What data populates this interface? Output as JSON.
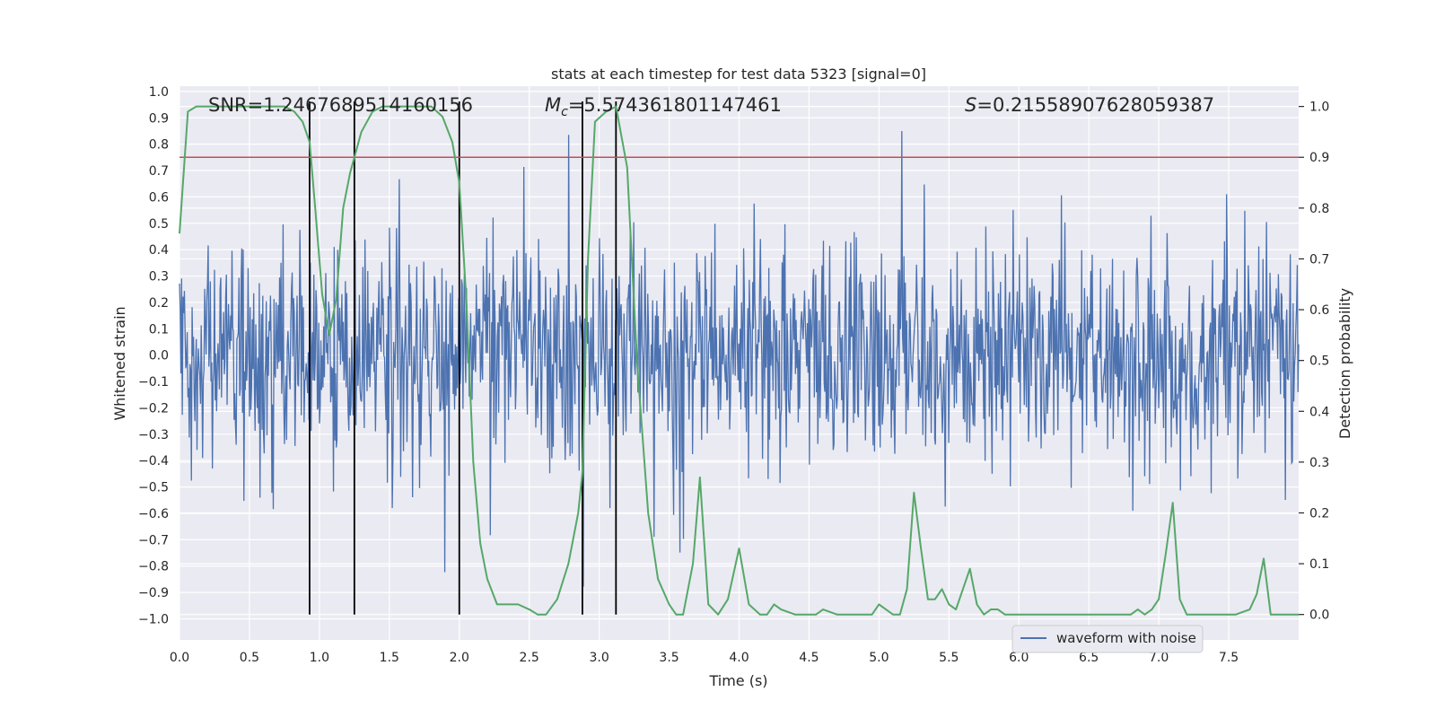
{
  "chart_data": {
    "type": "line",
    "title": "stats at each timestep for test data 5323 [signal=0]",
    "xlabel": "Time (s)",
    "ylabel_left": "Whitened strain",
    "ylabel_right": "Detection probability",
    "xlim": [
      0.0,
      8.0
    ],
    "ylim_left": [
      -1.08,
      1.02
    ],
    "ylim_right": [
      -0.05,
      1.04
    ],
    "grid": true,
    "x_ticks": [
      0.0,
      0.5,
      1.0,
      1.5,
      2.0,
      2.5,
      3.0,
      3.5,
      4.0,
      4.5,
      5.0,
      5.5,
      6.0,
      6.5,
      7.0,
      7.5
    ],
    "x_tick_labels": [
      "0.0",
      "0.5",
      "1.0",
      "1.5",
      "2.0",
      "2.5",
      "3.0",
      "3.5",
      "4.0",
      "4.5",
      "5.0",
      "5.5",
      "6.0",
      "6.5",
      "7.0",
      "7.5"
    ],
    "y_left_ticks": [
      1.0,
      0.9,
      0.8,
      0.7,
      0.6,
      0.5,
      0.4,
      0.3,
      0.2,
      0.1,
      0.0,
      -0.1,
      -0.2,
      -0.3,
      -0.4,
      -0.5,
      -0.6,
      -0.7,
      -0.8,
      -0.9,
      -1.0
    ],
    "y_left_tick_labels": [
      "1.0",
      "0.9",
      "0.8",
      "0.7",
      "0.6",
      "0.5",
      "0.4",
      "0.3",
      "0.2",
      "0.1",
      "0.0",
      "−0.1",
      "−0.2",
      "−0.3",
      "−0.4",
      "−0.5",
      "−0.6",
      "−0.7",
      "−0.8",
      "−0.9",
      "−1.0"
    ],
    "y_right_ticks": [
      1.0,
      0.9,
      0.8,
      0.7,
      0.6,
      0.5,
      0.4,
      0.3,
      0.2,
      0.1,
      0.0
    ],
    "y_right_tick_labels": [
      "1.0",
      "0.9",
      "0.8",
      "0.7",
      "0.6",
      "0.5",
      "0.4",
      "0.3",
      "0.2",
      "0.1",
      "0.0"
    ],
    "annotations": {
      "snr": "SNR=1.2467689514160156",
      "mc_symbol": "M",
      "mc_subscript": "c",
      "mc_value": "=5.574361801147461",
      "s_symbol": "S",
      "s_value": "=0.21558907628059387"
    },
    "legend": {
      "label": "waveform with noise",
      "location": "lower right"
    },
    "threshold": {
      "value": 0.9,
      "axis": "right",
      "color": "#c44e52"
    },
    "detection_markers": [
      0.93,
      1.25,
      2.0,
      2.88,
      3.12
    ],
    "waveform": {
      "name": "waveform with noise",
      "color": "#4c72b0",
      "t_start": 0.0,
      "t_end": 8.0,
      "sample_count": 1600,
      "seed": 5323,
      "typical_amplitude": 0.34,
      "peak_amplitude": 0.85
    },
    "detection_probability": {
      "name": "detection probability",
      "color": "#55a868",
      "x": [
        0.0,
        0.06,
        0.12,
        0.2,
        0.3,
        0.45,
        0.6,
        0.75,
        0.82,
        0.88,
        0.93,
        0.97,
        1.02,
        1.07,
        1.12,
        1.17,
        1.22,
        1.3,
        1.38,
        1.45,
        1.55,
        1.65,
        1.8,
        1.88,
        1.95,
        2.0,
        2.05,
        2.1,
        2.15,
        2.2,
        2.27,
        2.35,
        2.42,
        2.5,
        2.56,
        2.62,
        2.7,
        2.78,
        2.85,
        2.88,
        2.92,
        2.97,
        3.05,
        3.12,
        3.2,
        3.27,
        3.35,
        3.42,
        3.5,
        3.55,
        3.6,
        3.67,
        3.72,
        3.78,
        3.85,
        3.92,
        4.0,
        4.07,
        4.15,
        4.2,
        4.25,
        4.3,
        4.4,
        4.5,
        4.55,
        4.6,
        4.7,
        4.8,
        4.9,
        4.95,
        5.0,
        5.05,
        5.1,
        5.15,
        5.2,
        5.25,
        5.3,
        5.35,
        5.4,
        5.45,
        5.5,
        5.55,
        5.6,
        5.65,
        5.7,
        5.75,
        5.8,
        5.85,
        5.9,
        6.0,
        6.1,
        6.2,
        6.4,
        6.6,
        6.7,
        6.8,
        6.85,
        6.9,
        6.95,
        7.0,
        7.05,
        7.1,
        7.15,
        7.2,
        7.25,
        7.3,
        7.35,
        7.45,
        7.55,
        7.65,
        7.7,
        7.75,
        7.8,
        7.85,
        7.9,
        7.95,
        8.0
      ],
      "y": [
        0.75,
        0.99,
        1.0,
        1.0,
        1.0,
        1.0,
        1.0,
        1.0,
        0.99,
        0.97,
        0.93,
        0.8,
        0.63,
        0.55,
        0.62,
        0.8,
        0.87,
        0.95,
        0.99,
        1.0,
        1.0,
        1.0,
        1.0,
        0.98,
        0.93,
        0.85,
        0.62,
        0.3,
        0.14,
        0.07,
        0.02,
        0.02,
        0.02,
        0.01,
        0.0,
        0.0,
        0.03,
        0.1,
        0.2,
        0.28,
        0.7,
        0.97,
        0.99,
        1.0,
        0.88,
        0.5,
        0.2,
        0.07,
        0.02,
        0.0,
        0.0,
        0.1,
        0.27,
        0.02,
        0.0,
        0.03,
        0.13,
        0.02,
        0.0,
        0.0,
        0.02,
        0.01,
        0.0,
        0.0,
        0.0,
        0.01,
        0.0,
        0.0,
        0.0,
        0.0,
        0.02,
        0.01,
        0.0,
        0.0,
        0.05,
        0.24,
        0.13,
        0.03,
        0.03,
        0.05,
        0.02,
        0.01,
        0.05,
        0.09,
        0.02,
        0.0,
        0.01,
        0.01,
        0.0,
        0.0,
        0.0,
        0.0,
        0.0,
        0.0,
        0.0,
        0.0,
        0.01,
        0.0,
        0.01,
        0.03,
        0.12,
        0.22,
        0.03,
        0.0,
        0.0,
        0.0,
        0.0,
        0.0,
        0.0,
        0.01,
        0.04,
        0.11,
        0.0,
        0.0,
        0.0,
        0.0,
        0.0
      ]
    }
  }
}
